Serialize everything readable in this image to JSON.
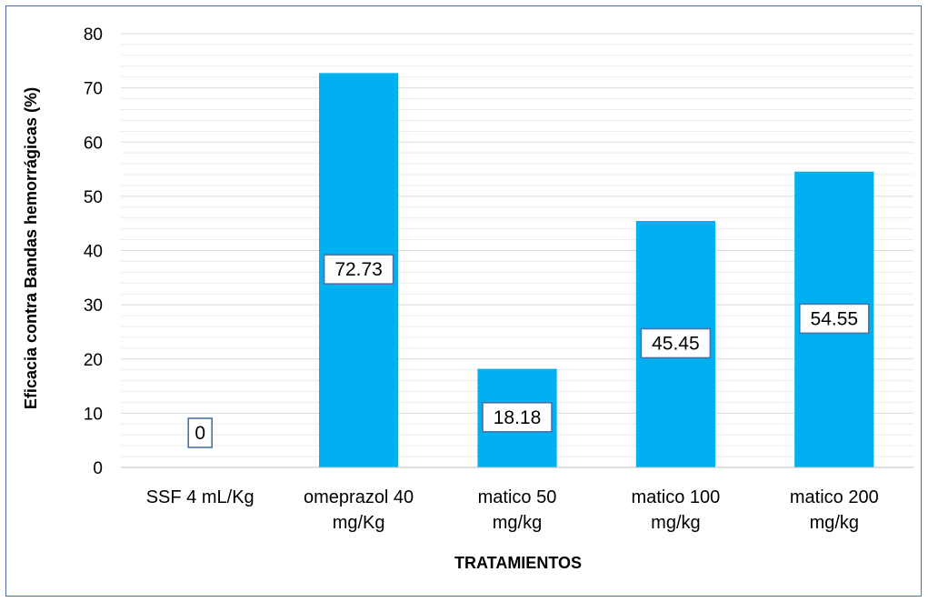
{
  "chart_data": {
    "type": "bar",
    "title": "",
    "xlabel": "TRATAMIENTOS",
    "ylabel": "Eficacia contra Bandas hemorrágicas (%)",
    "ylim": [
      0,
      80
    ],
    "yticks": [
      0,
      10,
      20,
      30,
      40,
      50,
      60,
      70,
      80
    ],
    "minor_grid_step": 2,
    "grid": true,
    "legend": "none",
    "categories": [
      [
        "SSF 4 mL/Kg"
      ],
      [
        "omeprazol 40",
        "mg/Kg"
      ],
      [
        "matico 50",
        "mg/kg"
      ],
      [
        "matico 100",
        "mg/kg"
      ],
      [
        "matico 200",
        "mg/kg"
      ]
    ],
    "values": [
      0,
      72.73,
      18.18,
      45.45,
      54.55
    ],
    "data_labels": [
      "0",
      "72.73",
      "18.18",
      "45.45",
      "54.55"
    ],
    "colors": {
      "bar": "#00b0f0",
      "label_border": "#4a72a8",
      "grid": "#d9d9d9",
      "frame": "#4a72a8"
    }
  }
}
